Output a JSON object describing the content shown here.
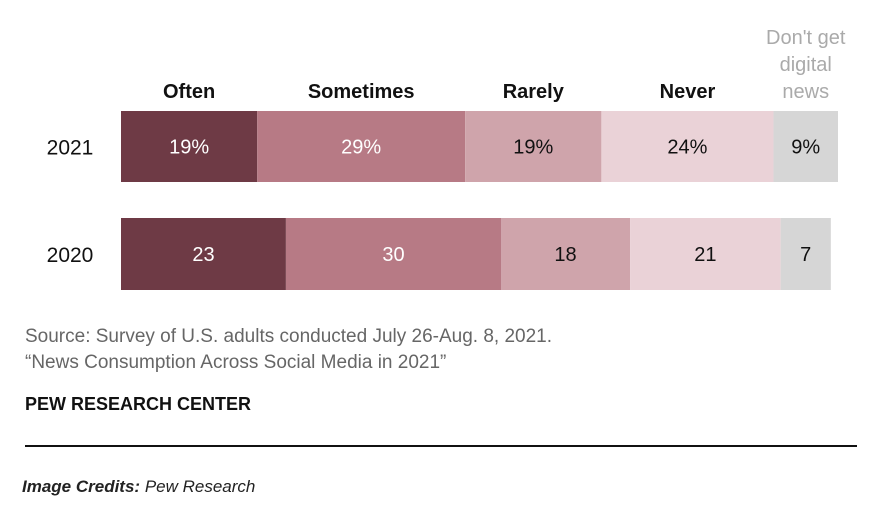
{
  "chart_data": {
    "type": "bar",
    "orientation": "horizontal",
    "stacked": true,
    "categories": [
      "2021",
      "2020"
    ],
    "series": [
      {
        "name": "Often",
        "values": [
          19,
          23
        ],
        "labels": [
          "19%",
          "23"
        ],
        "color": "#6e3a45",
        "label_color": "#ffffff"
      },
      {
        "name": "Sometimes",
        "values": [
          29,
          30
        ],
        "labels": [
          "29%",
          "30"
        ],
        "color": "#b77a85",
        "label_color": "#ffffff"
      },
      {
        "name": "Rarely",
        "values": [
          19,
          18
        ],
        "labels": [
          "19%",
          "18"
        ],
        "color": "#cfa4ab",
        "label_color": "#111111"
      },
      {
        "name": "Never",
        "values": [
          24,
          21
        ],
        "labels": [
          "24%",
          "21"
        ],
        "color": "#ead2d7",
        "label_color": "#111111"
      },
      {
        "name": "Don't get digital news",
        "name_lines": [
          "Don't get",
          "digital",
          "news"
        ],
        "values": [
          9,
          7
        ],
        "labels": [
          "9%",
          "7"
        ],
        "color": "#d6d6d6",
        "label_color": "#111111",
        "name_color": "#aaaaaa"
      }
    ],
    "xlim": [
      0,
      100
    ],
    "grid": false,
    "legend": "top"
  },
  "source": {
    "line1": "Source: Survey of U.S. adults conducted July 26-Aug. 8, 2021.",
    "line2": "“News Consumption Across Social Media in 2021”"
  },
  "org": "PEW RESEARCH CENTER",
  "credits": {
    "label": "Image Credits:",
    "value": "Pew Research"
  }
}
